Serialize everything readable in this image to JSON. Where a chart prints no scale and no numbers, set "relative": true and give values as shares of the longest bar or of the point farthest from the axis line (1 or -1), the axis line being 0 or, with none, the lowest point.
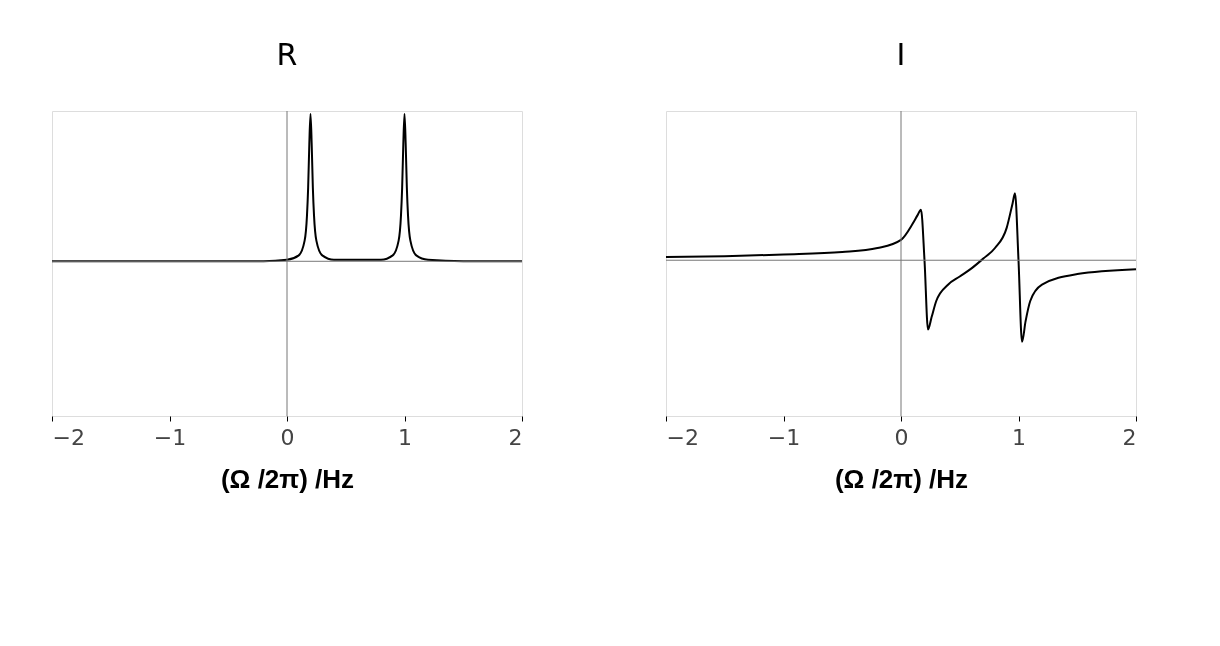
{
  "chart_data": [
    {
      "type": "line",
      "title": "R",
      "xlabel": "(Ω /2π) /Hz",
      "relative": true,
      "ref_lines": [
        {
          "axis": "x",
          "value": 0,
          "color": "#777777"
        }
      ],
      "xlim": [
        -2,
        2
      ],
      "xticks": [
        -2,
        -1,
        0,
        1,
        2
      ],
      "grid": false,
      "color": "#000000",
      "x": [
        -2,
        -1,
        -0.5,
        -0.2,
        0,
        0.1,
        0.15,
        0.17,
        0.18,
        0.19,
        0.2,
        0.21,
        0.22,
        0.23,
        0.25,
        0.3,
        0.4,
        0.6,
        0.8,
        0.9,
        0.95,
        0.97,
        0.98,
        0.99,
        1.0,
        1.01,
        1.02,
        1.03,
        1.05,
        1.1,
        1.2,
        1.5,
        2
      ],
      "values": [
        0,
        0,
        0,
        0,
        0.01,
        0.04,
        0.14,
        0.31,
        0.5,
        0.8,
        1,
        0.8,
        0.5,
        0.31,
        0.14,
        0.04,
        0.01,
        0.01,
        0.01,
        0.04,
        0.14,
        0.31,
        0.5,
        0.8,
        1,
        0.8,
        0.5,
        0.31,
        0.14,
        0.04,
        0.01,
        0,
        0
      ]
    },
    {
      "type": "line",
      "title": "I",
      "xlabel": "(Ω /2π) /Hz",
      "relative": true,
      "ref_lines": [
        {
          "axis": "x",
          "value": 0,
          "color": "#777777"
        }
      ],
      "xlim": [
        -2,
        2
      ],
      "xticks": [
        -2,
        -1,
        0,
        1,
        2
      ],
      "grid": false,
      "color": "#000000",
      "x": [
        -2,
        -1.5,
        -1,
        -0.5,
        -0.2,
        0,
        0.1,
        0.14,
        0.17,
        0.2,
        0.23,
        0.26,
        0.3,
        0.4,
        0.5,
        0.6,
        0.7,
        0.8,
        0.9,
        0.95,
        0.97,
        1.0,
        1.03,
        1.06,
        1.1,
        1.2,
        1.5,
        2
      ],
      "values": [
        0.04,
        0.05,
        0.07,
        0.1,
        0.15,
        0.25,
        0.45,
        0.55,
        0.62,
        0,
        -0.85,
        -0.7,
        -0.5,
        -0.3,
        -0.2,
        -0.1,
        0.02,
        0.15,
        0.4,
        0.7,
        0.82,
        0,
        -1,
        -0.75,
        -0.5,
        -0.3,
        -0.17,
        -0.11
      ]
    }
  ]
}
